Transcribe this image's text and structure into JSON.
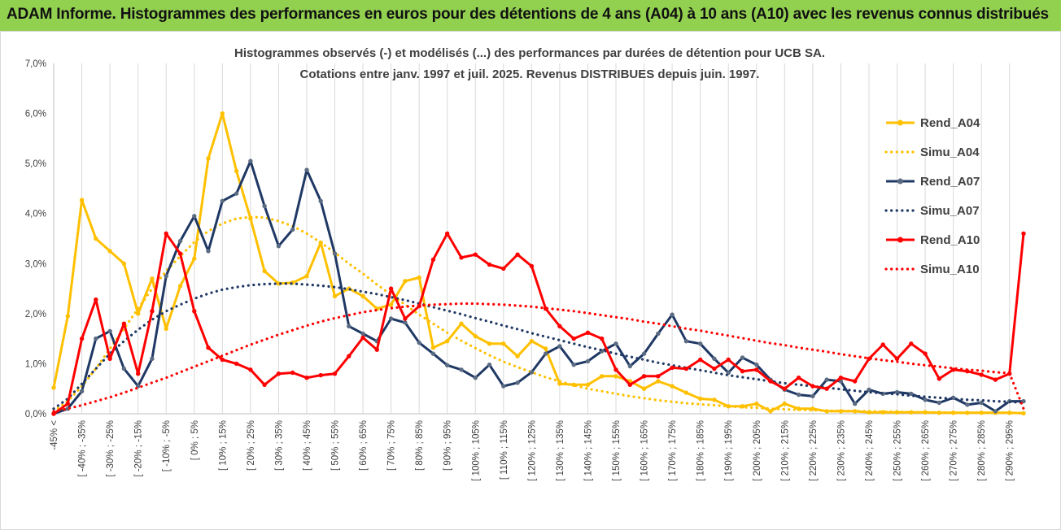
{
  "header": {
    "title": "ADAM Informe. Histogrammes des performances en euros pour des détentions de 4 ans (A04) à 10 ans (A10) avec les revenus connus distribués"
  },
  "colors": {
    "banner": "#92D050",
    "A04": "#FFC000",
    "A07": "#1F3864",
    "A10": "#FF0000",
    "axis": "#bfbfbf",
    "grid": "#d9d9d9"
  },
  "chart_data": {
    "type": "line",
    "title": "Histogrammes observés (-) et modélisés (...) des performances par durées de détention pour UCB SA.",
    "subtitle": "Cotations entre janv. 1997 et juil. 2025. Revenus DISTRIBUES depuis juin. 1997.",
    "xlabel": "",
    "ylabel": "",
    "ylim": [
      0,
      0.07
    ],
    "y_tick_labels": [
      "0,0%",
      "1,0%",
      "2,0%",
      "3,0%",
      "4,0%",
      "5,0%",
      "6,0%",
      "7,0%"
    ],
    "grid": "vertical",
    "legend_position": "right",
    "x_tick_labels": [
      "-45% <",
      "[ -40% ; -35%",
      "[ -30% ; -25%",
      "[ -20% ; -15%",
      "[ -10% ; -5%",
      "[ 0% ; 5%",
      "[ 10% ; 15%",
      "[ 20% ; 25%",
      "[ 30% ; 35%",
      "[ 40% ; 45%",
      "[ 50% ; 55%",
      "[ 60% ; 65%",
      "[ 70% ; 75%",
      "[ 80% ; 85%",
      "[ 90% ; 95%",
      "[ 100% ; 105%",
      "[ 110% ; 115%",
      "[ 120% ; 125%",
      "[ 130% ; 135%",
      "[ 140% ; 145%",
      "[ 150% ; 155%",
      "[ 160% ; 165%",
      "[ 170% ; 175%",
      "[ 180% ; 185%",
      "[ 190% ; 195%",
      "[ 200% ; 205%",
      "[ 210% ; 215%",
      "[ 220% ; 225%",
      "[ 230% ; 235%",
      "[ 240% ; 245%",
      "[ 250% ; 255%",
      "[ 260% ; 265%",
      "[ 270% ; 275%",
      "[ 280% ; 285%",
      "[ 290% ; 295%"
    ],
    "series": [
      {
        "name": "Rend_A04",
        "style": "solid",
        "color": "#FFC000",
        "values": [
          0.0052,
          0.0195,
          0.0427,
          0.035,
          0.0325,
          0.03,
          0.02,
          0.027,
          0.017,
          0.0255,
          0.031,
          0.051,
          0.06,
          0.0485,
          0.039,
          0.0285,
          0.026,
          0.0262,
          0.0275,
          0.0342,
          0.0235,
          0.025,
          0.0235,
          0.021,
          0.0218,
          0.0265,
          0.0272,
          0.0132,
          0.0145,
          0.018,
          0.0155,
          0.014,
          0.014,
          0.0115,
          0.0145,
          0.013,
          0.006,
          0.0058,
          0.0058,
          0.0075,
          0.0075,
          0.0065,
          0.005,
          0.0065,
          0.0055,
          0.0042,
          0.003,
          0.0028,
          0.0015,
          0.0015,
          0.002,
          0.0005,
          0.002,
          0.001,
          0.001,
          0.0005,
          0.0005,
          0.0005,
          0.0003,
          0.0003,
          0.0003,
          0.0003,
          0.0003,
          0.0002,
          0.0002,
          0.0002,
          0.0002,
          0.0002,
          0.0002,
          0.0001
        ]
      },
      {
        "name": "Simu_A04",
        "style": "dotted",
        "color": "#FFC000",
        "values": [
          0.0005,
          0.0025,
          0.0055,
          0.009,
          0.013,
          0.017,
          0.021,
          0.025,
          0.0285,
          0.0315,
          0.0343,
          0.0365,
          0.038,
          0.039,
          0.0393,
          0.0392,
          0.0385,
          0.0375,
          0.036,
          0.0342,
          0.0322,
          0.03,
          0.028,
          0.0258,
          0.0238,
          0.0218,
          0.0198,
          0.018,
          0.0162,
          0.0146,
          0.0131,
          0.0117,
          0.0104,
          0.0093,
          0.0083,
          0.0073,
          0.0065,
          0.0057,
          0.005,
          0.0045,
          0.004,
          0.0035,
          0.0031,
          0.0027,
          0.0024,
          0.0021,
          0.0019,
          0.0017,
          0.0015,
          0.0013,
          0.0012,
          0.001,
          0.0009,
          0.0008,
          0.0007,
          0.0006,
          0.0006,
          0.0005,
          0.0005,
          0.0004,
          0.0004,
          0.0003,
          0.0003,
          0.0003,
          0.0002,
          0.0002,
          0.0002,
          0.0002,
          0.0002,
          0.0001
        ]
      },
      {
        "name": "Rend_A07",
        "style": "solid",
        "color": "#1F3864",
        "values": [
          0.0,
          0.001,
          0.0045,
          0.015,
          0.0165,
          0.009,
          0.0055,
          0.011,
          0.0275,
          0.0345,
          0.0395,
          0.0325,
          0.0425,
          0.044,
          0.0505,
          0.0415,
          0.0335,
          0.0368,
          0.0487,
          0.0425,
          0.032,
          0.0175,
          0.016,
          0.0145,
          0.019,
          0.0182,
          0.0142,
          0.012,
          0.0097,
          0.0088,
          0.0072,
          0.0098,
          0.0055,
          0.0062,
          0.0083,
          0.012,
          0.0135,
          0.0098,
          0.0105,
          0.0125,
          0.014,
          0.0095,
          0.012,
          0.016,
          0.0198,
          0.0145,
          0.014,
          0.011,
          0.0082,
          0.0112,
          0.0098,
          0.0068,
          0.0048,
          0.0038,
          0.0035,
          0.0068,
          0.0065,
          0.002,
          0.0048,
          0.004,
          0.0043,
          0.004,
          0.0028,
          0.0022,
          0.0032,
          0.0018,
          0.0022,
          0.0005,
          0.0025,
          0.0025
        ]
      },
      {
        "name": "Simu_A07",
        "style": "dotted",
        "color": "#1F3864",
        "values": [
          0.001,
          0.003,
          0.006,
          0.009,
          0.012,
          0.0145,
          0.0168,
          0.0188,
          0.0205,
          0.0218,
          0.023,
          0.024,
          0.0248,
          0.0253,
          0.0257,
          0.0259,
          0.026,
          0.026,
          0.0258,
          0.0256,
          0.0253,
          0.0249,
          0.0244,
          0.0239,
          0.0233,
          0.0227,
          0.022,
          0.0213,
          0.0206,
          0.0199,
          0.0191,
          0.0184,
          0.0176,
          0.0169,
          0.0161,
          0.0154,
          0.0147,
          0.014,
          0.0133,
          0.0127,
          0.012,
          0.0114,
          0.0108,
          0.0102,
          0.0097,
          0.0092,
          0.0087,
          0.0082,
          0.0077,
          0.0073,
          0.0069,
          0.0065,
          0.0061,
          0.0058,
          0.0055,
          0.0052,
          0.0049,
          0.0046,
          0.0043,
          0.0041,
          0.0039,
          0.0036,
          0.0034,
          0.0032,
          0.003,
          0.0028,
          0.0027,
          0.0025,
          0.0024,
          0.0022
        ]
      },
      {
        "name": "Rend_A10",
        "style": "solid",
        "color": "#FF0000",
        "values": [
          0.0,
          0.002,
          0.015,
          0.0228,
          0.011,
          0.018,
          0.008,
          0.0205,
          0.036,
          0.032,
          0.0205,
          0.0132,
          0.0108,
          0.01,
          0.0088,
          0.0058,
          0.008,
          0.0082,
          0.0072,
          0.0077,
          0.008,
          0.0115,
          0.0152,
          0.0128,
          0.025,
          0.019,
          0.0215,
          0.0308,
          0.036,
          0.0312,
          0.0318,
          0.0298,
          0.029,
          0.0318,
          0.0295,
          0.021,
          0.0175,
          0.015,
          0.0162,
          0.015,
          0.0088,
          0.0058,
          0.0075,
          0.0075,
          0.0092,
          0.009,
          0.0108,
          0.009,
          0.0108,
          0.0085,
          0.0088,
          0.0065,
          0.005,
          0.0072,
          0.0055,
          0.005,
          0.0072,
          0.0065,
          0.011,
          0.0138,
          0.011,
          0.014,
          0.012,
          0.007,
          0.0088,
          0.0085,
          0.0078,
          0.0068,
          0.008,
          0.036
        ]
      },
      {
        "name": "Simu_A10",
        "style": "dotted",
        "color": "#FF0000",
        "values": [
          0.0005,
          0.001,
          0.0017,
          0.0025,
          0.0033,
          0.0042,
          0.0052,
          0.0062,
          0.0072,
          0.0083,
          0.0094,
          0.0105,
          0.0116,
          0.0127,
          0.0138,
          0.0148,
          0.0158,
          0.0167,
          0.0176,
          0.0184,
          0.0191,
          0.0197,
          0.0203,
          0.0207,
          0.0211,
          0.0214,
          0.0216,
          0.0218,
          0.0219,
          0.022,
          0.022,
          0.0219,
          0.0218,
          0.0216,
          0.0214,
          0.0211,
          0.0208,
          0.0205,
          0.0201,
          0.0197,
          0.0193,
          0.0189,
          0.0184,
          0.018,
          0.0175,
          0.017,
          0.0166,
          0.0161,
          0.0156,
          0.0151,
          0.0146,
          0.0141,
          0.0137,
          0.0132,
          0.0128,
          0.0124,
          0.0119,
          0.0115,
          0.0111,
          0.0107,
          0.0104,
          0.01,
          0.0097,
          0.0094,
          0.0091,
          0.0088,
          0.0086,
          0.0083,
          0.0081,
          0.001
        ]
      }
    ]
  }
}
